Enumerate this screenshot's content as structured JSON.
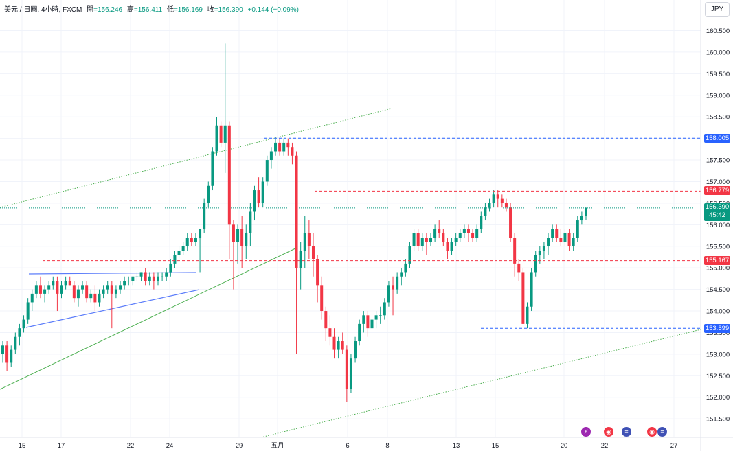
{
  "legend": {
    "symbol": "美元 / 日圓, 4小時, FXCM",
    "open_label": "開",
    "open": "=156.246",
    "high_label": "高",
    "high": "=156.411",
    "low_label": "低",
    "low": "=156.169",
    "close_label": "收",
    "close": "=156.390",
    "change": "+0.144 (+0.09%)"
  },
  "currency_button": "JPY",
  "price_axis": {
    "ticks": [
      "160.500",
      "160.000",
      "159.500",
      "159.000",
      "158.500",
      "158.000",
      "157.500",
      "157.000",
      "156.500",
      "156.000",
      "155.500",
      "155.000",
      "154.500",
      "154.000",
      "153.500",
      "153.000",
      "152.500",
      "152.000",
      "151.500"
    ]
  },
  "time_axis": {
    "ticks": [
      "15",
      "17",
      "22",
      "24",
      "29",
      "五月",
      "6",
      "8",
      "13",
      "15",
      "20",
      "22",
      "27"
    ]
  },
  "price_tags": {
    "level_158": "158.005",
    "level_156_779": "156.779",
    "current_price": "156.390",
    "countdown": "45:42",
    "level_155_167": "155.167",
    "level_153_599": "153.599"
  },
  "colors": {
    "up": "#089981",
    "down": "#f23645",
    "blue_level": "#2962ff",
    "red_level": "#f23645",
    "trend_green": "#4caf50",
    "dotted_green": "#4caf50",
    "channel_blue": "#5b7cfa"
  },
  "event_icons": [
    "lightning-icon",
    "target-icon",
    "us-flag-icon",
    "target-icon",
    "us-flag-icon"
  ],
  "chart_data": {
    "type": "candlestick",
    "title": "美元 / 日圓, 4小時, FXCM",
    "ylim": [
      151.2,
      160.9
    ],
    "grid": true,
    "x_tick_labels": [
      "15",
      "17",
      "22",
      "24",
      "29",
      "五月",
      "6",
      "8",
      "13",
      "15",
      "20",
      "22",
      "27"
    ],
    "candles_ohlc": [
      [
        153.0,
        153.3,
        152.8,
        153.2
      ],
      [
        153.2,
        153.3,
        152.6,
        152.8
      ],
      [
        152.8,
        153.2,
        152.7,
        153.1
      ],
      [
        153.1,
        153.5,
        153.0,
        153.4
      ],
      [
        153.4,
        153.7,
        153.2,
        153.6
      ],
      [
        153.6,
        153.9,
        153.5,
        153.8
      ],
      [
        153.8,
        154.3,
        153.7,
        154.2
      ],
      [
        154.2,
        154.5,
        154.0,
        154.4
      ],
      [
        154.4,
        154.7,
        154.3,
        154.6
      ],
      [
        154.6,
        154.8,
        154.3,
        154.4
      ],
      [
        154.4,
        154.6,
        154.2,
        154.5
      ],
      [
        154.5,
        154.7,
        154.4,
        154.6
      ],
      [
        154.6,
        154.8,
        154.5,
        154.7
      ],
      [
        154.7,
        154.8,
        154.0,
        154.4
      ],
      [
        154.4,
        154.7,
        154.3,
        154.6
      ],
      [
        154.6,
        154.8,
        154.5,
        154.7
      ],
      [
        154.7,
        154.8,
        154.6,
        154.6
      ],
      [
        154.6,
        154.7,
        154.2,
        154.3
      ],
      [
        154.3,
        154.6,
        154.1,
        154.5
      ],
      [
        154.5,
        154.7,
        154.4,
        154.6
      ],
      [
        154.6,
        154.7,
        154.2,
        154.3
      ],
      [
        154.3,
        154.5,
        154.2,
        154.4
      ],
      [
        154.4,
        154.6,
        154.0,
        154.2
      ],
      [
        154.2,
        154.5,
        154.1,
        154.4
      ],
      [
        154.4,
        154.6,
        154.3,
        154.5
      ],
      [
        154.5,
        154.7,
        154.4,
        154.6
      ],
      [
        154.6,
        154.7,
        153.6,
        154.4
      ],
      [
        154.4,
        154.6,
        154.3,
        154.5
      ],
      [
        154.5,
        154.7,
        154.4,
        154.6
      ],
      [
        154.6,
        154.8,
        154.5,
        154.7
      ],
      [
        154.7,
        154.8,
        154.6,
        154.7
      ],
      [
        154.7,
        154.8,
        154.6,
        154.8
      ],
      [
        154.8,
        154.9,
        154.7,
        154.8
      ],
      [
        154.8,
        154.9,
        154.7,
        154.9
      ],
      [
        154.9,
        155.0,
        154.6,
        154.7
      ],
      [
        154.7,
        154.9,
        154.6,
        154.8
      ],
      [
        154.8,
        154.9,
        154.5,
        154.7
      ],
      [
        154.7,
        154.9,
        154.6,
        154.8
      ],
      [
        154.8,
        154.9,
        154.7,
        154.8
      ],
      [
        154.8,
        155.0,
        154.7,
        154.9
      ],
      [
        154.9,
        155.2,
        154.8,
        155.1
      ],
      [
        155.1,
        155.4,
        155.0,
        155.3
      ],
      [
        155.3,
        155.5,
        155.2,
        155.4
      ],
      [
        155.4,
        155.6,
        155.3,
        155.5
      ],
      [
        155.5,
        155.8,
        155.4,
        155.7
      ],
      [
        155.7,
        155.8,
        155.5,
        155.6
      ],
      [
        155.6,
        155.8,
        155.5,
        155.7
      ],
      [
        155.7,
        155.9,
        154.9,
        155.9
      ],
      [
        155.9,
        156.6,
        155.8,
        156.5
      ],
      [
        156.5,
        157.0,
        156.4,
        156.9
      ],
      [
        156.9,
        157.8,
        156.8,
        157.7
      ],
      [
        157.7,
        158.5,
        157.6,
        158.3
      ],
      [
        158.3,
        158.4,
        157.8,
        157.9
      ],
      [
        157.9,
        160.2,
        157.2,
        158.3
      ],
      [
        158.3,
        158.4,
        155.2,
        156.0
      ],
      [
        156.0,
        156.1,
        154.5,
        155.6
      ],
      [
        155.6,
        156.0,
        155.1,
        155.9
      ],
      [
        155.9,
        156.2,
        155.0,
        155.5
      ],
      [
        155.5,
        156.0,
        155.2,
        155.8
      ],
      [
        155.8,
        156.5,
        155.5,
        156.3
      ],
      [
        156.3,
        156.9,
        156.1,
        156.8
      ],
      [
        156.8,
        157.1,
        156.4,
        156.5
      ],
      [
        156.5,
        157.1,
        156.4,
        157.0
      ],
      [
        157.0,
        157.6,
        156.9,
        157.5
      ],
      [
        157.5,
        157.8,
        157.3,
        157.7
      ],
      [
        157.7,
        158.0,
        157.6,
        157.9
      ],
      [
        157.9,
        158.0,
        157.6,
        157.7
      ],
      [
        157.7,
        158.0,
        157.6,
        157.9
      ],
      [
        157.9,
        158.0,
        157.6,
        157.8
      ],
      [
        157.8,
        157.9,
        157.4,
        157.6
      ],
      [
        157.6,
        157.7,
        153.0,
        155.0
      ],
      [
        155.0,
        155.6,
        154.5,
        155.4
      ],
      [
        155.4,
        156.2,
        155.0,
        155.8
      ],
      [
        155.8,
        156.1,
        155.2,
        155.5
      ],
      [
        155.5,
        155.8,
        154.8,
        155.2
      ],
      [
        155.2,
        155.3,
        154.2,
        154.6
      ],
      [
        154.6,
        154.8,
        153.8,
        154.0
      ],
      [
        154.0,
        154.1,
        153.3,
        153.6
      ],
      [
        153.6,
        153.9,
        153.2,
        153.4
      ],
      [
        153.4,
        153.6,
        152.9,
        153.1
      ],
      [
        153.1,
        153.4,
        152.9,
        153.3
      ],
      [
        153.3,
        153.5,
        153.0,
        153.1
      ],
      [
        153.1,
        153.2,
        151.9,
        152.2
      ],
      [
        152.2,
        153.0,
        152.1,
        152.9
      ],
      [
        152.9,
        153.4,
        152.8,
        153.3
      ],
      [
        153.3,
        153.8,
        153.2,
        153.7
      ],
      [
        153.7,
        154.0,
        153.5,
        153.9
      ],
      [
        153.9,
        154.0,
        153.4,
        153.6
      ],
      [
        153.6,
        153.9,
        153.5,
        153.8
      ],
      [
        153.8,
        154.0,
        153.6,
        153.9
      ],
      [
        153.9,
        154.1,
        153.7,
        153.9
      ],
      [
        153.9,
        154.3,
        153.8,
        154.2
      ],
      [
        154.2,
        154.7,
        154.1,
        154.6
      ],
      [
        154.6,
        154.8,
        153.9,
        154.5
      ],
      [
        154.5,
        154.9,
        154.4,
        154.8
      ],
      [
        154.8,
        155.0,
        154.6,
        154.9
      ],
      [
        154.9,
        155.2,
        154.8,
        155.1
      ],
      [
        155.1,
        155.6,
        155.0,
        155.5
      ],
      [
        155.5,
        155.9,
        155.4,
        155.8
      ],
      [
        155.8,
        155.9,
        155.4,
        155.5
      ],
      [
        155.5,
        155.8,
        155.4,
        155.7
      ],
      [
        155.7,
        155.8,
        155.3,
        155.6
      ],
      [
        155.6,
        155.8,
        155.5,
        155.7
      ],
      [
        155.7,
        156.0,
        155.6,
        155.9
      ],
      [
        155.9,
        156.1,
        155.7,
        155.8
      ],
      [
        155.8,
        155.9,
        155.5,
        155.6
      ],
      [
        155.6,
        155.7,
        155.2,
        155.4
      ],
      [
        155.4,
        155.7,
        155.3,
        155.6
      ],
      [
        155.6,
        155.8,
        155.5,
        155.7
      ],
      [
        155.7,
        155.9,
        155.6,
        155.8
      ],
      [
        155.8,
        156.0,
        155.7,
        155.9
      ],
      [
        155.9,
        156.0,
        155.6,
        155.8
      ],
      [
        155.8,
        155.9,
        155.6,
        155.7
      ],
      [
        155.7,
        156.0,
        155.6,
        155.9
      ],
      [
        155.9,
        156.3,
        155.8,
        156.2
      ],
      [
        156.2,
        156.5,
        156.1,
        156.4
      ],
      [
        156.4,
        156.6,
        156.3,
        156.5
      ],
      [
        156.5,
        156.8,
        156.4,
        156.7
      ],
      [
        156.7,
        156.8,
        156.4,
        156.6
      ],
      [
        156.6,
        156.7,
        156.4,
        156.5
      ],
      [
        156.5,
        156.6,
        156.3,
        156.4
      ],
      [
        156.4,
        156.5,
        155.6,
        155.7
      ],
      [
        155.7,
        155.8,
        154.8,
        155.1
      ],
      [
        155.1,
        155.2,
        154.7,
        154.9
      ],
      [
        154.9,
        155.0,
        153.7,
        153.7
      ],
      [
        153.7,
        154.2,
        153.6,
        154.1
      ],
      [
        154.1,
        155.0,
        154.0,
        154.9
      ],
      [
        154.9,
        155.4,
        154.8,
        155.3
      ],
      [
        155.3,
        155.5,
        155.1,
        155.4
      ],
      [
        155.4,
        155.6,
        155.2,
        155.5
      ],
      [
        155.5,
        155.8,
        155.3,
        155.7
      ],
      [
        155.7,
        156.0,
        155.6,
        155.9
      ],
      [
        155.9,
        156.0,
        155.6,
        155.7
      ],
      [
        155.7,
        155.9,
        155.5,
        155.6
      ],
      [
        155.6,
        155.9,
        155.5,
        155.8
      ],
      [
        155.8,
        155.9,
        155.4,
        155.5
      ],
      [
        155.5,
        155.8,
        155.4,
        155.7
      ],
      [
        155.7,
        156.2,
        155.6,
        156.1
      ],
      [
        156.1,
        156.3,
        156.0,
        156.2
      ],
      [
        156.2,
        156.4,
        156.1,
        156.39
      ]
    ],
    "horizontal_levels": [
      158.005,
      156.779,
      156.39,
      155.167,
      153.599
    ]
  }
}
